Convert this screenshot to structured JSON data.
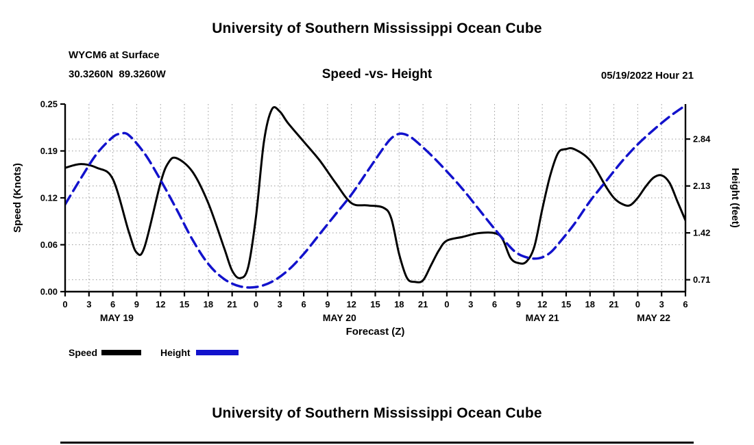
{
  "page": {
    "title_top": "University of Southern Mississippi Ocean Cube",
    "title_bottom": "University of Southern Mississippi Ocean Cube"
  },
  "header": {
    "station_line1": "WYCM6 at Surface",
    "station_line2": "30.3260N  89.3260W",
    "chart_title": "Speed -vs- Height",
    "datetime": "05/19/2022 Hour 21"
  },
  "legend": {
    "speed_label": "Speed",
    "height_label": "Height",
    "speed_color": "#000000",
    "height_color": "#1212cc"
  },
  "chart_data": {
    "type": "line",
    "title": "Speed -vs- Height",
    "xlabel": "Forecast (Z)",
    "ylabel_left": "Speed (Knots)",
    "ylabel_right": "Height (feet)",
    "grid": true,
    "x_range": [
      0,
      78
    ],
    "x_tick_hours": [
      0,
      3,
      6,
      9,
      12,
      15,
      18,
      21,
      24,
      27,
      30,
      33,
      36,
      39,
      42,
      45,
      48,
      51,
      54,
      57,
      60,
      63,
      66,
      69,
      72,
      75,
      78
    ],
    "x_tick_labels": [
      "0",
      "3",
      "6",
      "9",
      "12",
      "15",
      "18",
      "21",
      "0",
      "3",
      "6",
      "9",
      "12",
      "15",
      "18",
      "21",
      "0",
      "3",
      "6",
      "9",
      "12",
      "15",
      "18",
      "21",
      "0",
      "3",
      "6"
    ],
    "day_labels": [
      {
        "label": "MAY 19",
        "hour": 6.5
      },
      {
        "label": "MAY 20",
        "hour": 34.5
      },
      {
        "label": "MAY 21",
        "hour": 60
      },
      {
        "label": "MAY 22",
        "hour": 74
      }
    ],
    "left_axis": {
      "lim": [
        0,
        0.25
      ],
      "ticks": [
        0,
        0.0625,
        0.125,
        0.1875,
        0.25
      ],
      "labels": [
        "0.00",
        "0.06",
        "0.12",
        "0.19",
        "0.25"
      ]
    },
    "right_axis": {
      "lim": [
        0.53,
        3.37
      ],
      "ticks": [
        0.71,
        1.42,
        2.13,
        2.84
      ],
      "labels": [
        "0.71",
        "1.42",
        "2.13",
        "2.84"
      ]
    },
    "series": [
      {
        "name": "Speed",
        "axis": "left",
        "color": "#000000",
        "dash": null,
        "width": 3,
        "x": [
          0,
          2,
          4,
          6,
          8,
          9,
          10,
          12,
          13,
          14,
          16,
          18,
          20,
          21,
          22,
          23,
          24,
          25,
          26,
          27,
          28,
          30,
          32,
          34,
          36,
          38,
          40,
          41,
          42,
          43,
          44,
          45,
          46,
          47,
          48,
          50,
          52,
          54,
          55,
          56,
          57,
          58,
          59,
          60,
          61,
          62,
          63,
          64,
          66,
          68,
          69,
          70,
          71,
          72,
          73,
          74,
          75,
          76,
          77,
          78
        ],
        "y": [
          0.165,
          0.17,
          0.165,
          0.15,
          0.08,
          0.052,
          0.06,
          0.145,
          0.172,
          0.178,
          0.16,
          0.118,
          0.058,
          0.028,
          0.018,
          0.032,
          0.1,
          0.2,
          0.243,
          0.24,
          0.225,
          0.2,
          0.175,
          0.145,
          0.118,
          0.115,
          0.112,
          0.098,
          0.05,
          0.018,
          0.013,
          0.015,
          0.035,
          0.055,
          0.068,
          0.073,
          0.078,
          0.078,
          0.07,
          0.045,
          0.038,
          0.04,
          0.06,
          0.11,
          0.155,
          0.185,
          0.19,
          0.19,
          0.175,
          0.14,
          0.125,
          0.117,
          0.115,
          0.125,
          0.14,
          0.152,
          0.155,
          0.145,
          0.12,
          0.095
        ]
      },
      {
        "name": "Height",
        "axis": "right",
        "color": "#1212cc",
        "dash": [
          15,
          8
        ],
        "width": 3.5,
        "x": [
          0,
          2,
          4,
          6,
          7,
          8,
          10,
          12,
          14,
          16,
          18,
          20,
          22,
          24,
          26,
          28,
          30,
          32,
          34,
          36,
          38,
          40,
          41,
          42,
          43,
          44,
          46,
          48,
          50,
          52,
          54,
          56,
          57,
          58,
          59,
          60,
          61,
          62,
          64,
          66,
          68,
          70,
          72,
          74,
          76,
          78
        ],
        "y": [
          1.85,
          2.25,
          2.62,
          2.87,
          2.92,
          2.9,
          2.62,
          2.22,
          1.78,
          1.32,
          0.95,
          0.72,
          0.61,
          0.6,
          0.68,
          0.85,
          1.1,
          1.4,
          1.7,
          2.0,
          2.35,
          2.7,
          2.85,
          2.92,
          2.9,
          2.82,
          2.6,
          2.35,
          2.08,
          1.78,
          1.48,
          1.2,
          1.1,
          1.05,
          1.03,
          1.05,
          1.12,
          1.25,
          1.55,
          1.9,
          2.2,
          2.5,
          2.76,
          2.98,
          3.18,
          3.35
        ]
      }
    ]
  }
}
